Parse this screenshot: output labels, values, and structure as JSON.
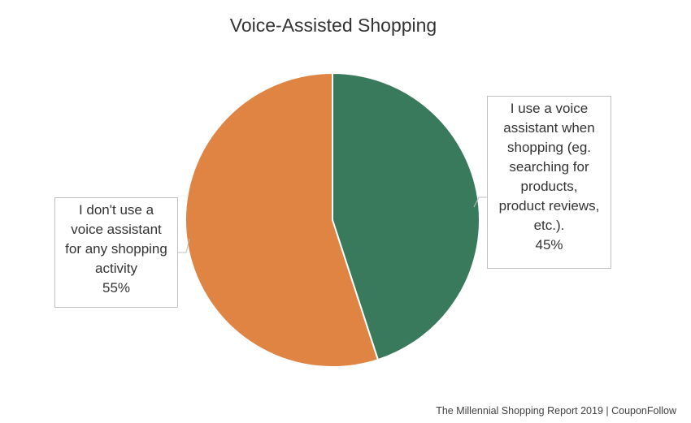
{
  "chart_data": {
    "type": "pie",
    "title": "Voice-Assisted Shopping",
    "slices": [
      {
        "label_lines": [
          "I use a voice",
          "assistant when",
          "shopping (eg.",
          "searching for",
          "products,",
          "product reviews,",
          "etc.)."
        ],
        "value": 45,
        "value_label": "45%",
        "color": "#3a7a5c"
      },
      {
        "label_lines": [
          "I don't use a",
          "voice assistant",
          "for any shopping",
          "activity"
        ],
        "value": 55,
        "value_label": "55%",
        "color": "#e08443"
      }
    ]
  },
  "footer": {
    "source": "The Millennial Shopping Report 2019 | CouponFollow"
  }
}
